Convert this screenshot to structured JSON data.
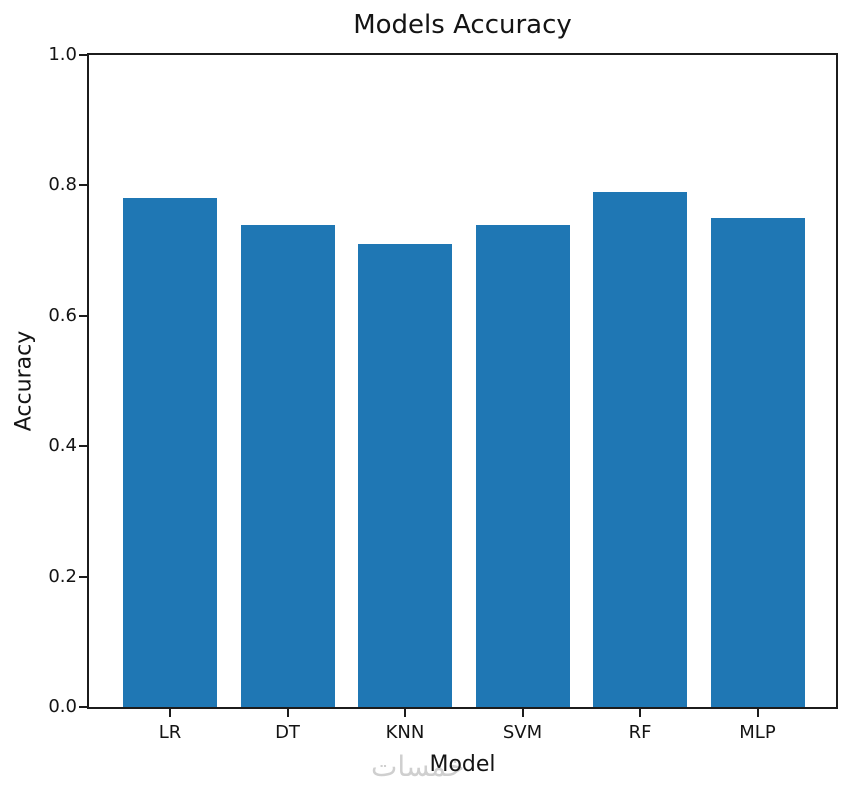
{
  "chart_data": {
    "type": "bar",
    "title": "Models Accuracy",
    "xlabel": "Model",
    "ylabel": "Accuracy",
    "categories": [
      "LR",
      "DT",
      "KNN",
      "SVM",
      "RF",
      "MLP"
    ],
    "values": [
      0.78,
      0.74,
      0.71,
      0.74,
      0.79,
      0.75
    ],
    "ylim": [
      0.0,
      1.0
    ],
    "y_ticks": [
      "1.0",
      "0.8",
      "0.6",
      "0.4",
      "0.2",
      "0.0"
    ],
    "grid": false,
    "legend": false,
    "bar_color": "#1f77b4",
    "spine_color": "#1c1c1c",
    "text_color": "#141414"
  },
  "watermark": {
    "text": "خمسات",
    "color": "#cfcfcf"
  }
}
